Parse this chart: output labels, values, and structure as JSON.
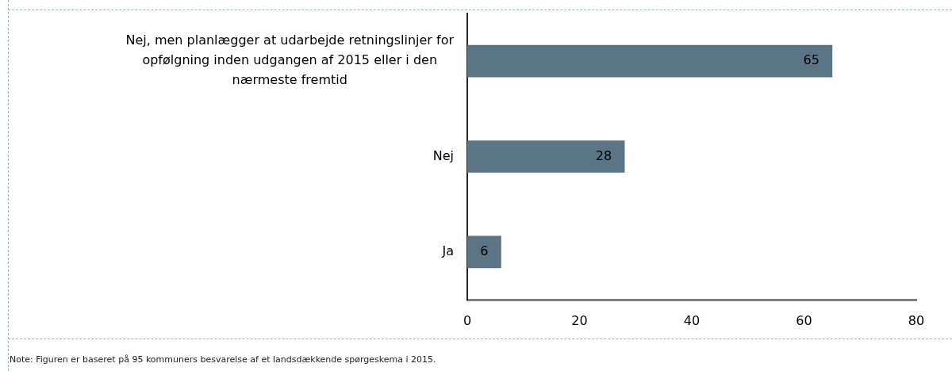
{
  "chart_data": {
    "type": "bar",
    "orientation": "horizontal",
    "categories": [
      "Nej, men planlægger at udarbejde retningslinjer for opfølgning inden udgangen af 2015 eller i den nærmeste fremtid",
      "Nej",
      "Ja"
    ],
    "values": [
      65,
      28,
      6
    ],
    "color": "#5b7586",
    "xlim": [
      0,
      80
    ],
    "xticks": [
      0,
      20,
      40,
      60,
      80
    ],
    "data_labels": true,
    "annotations": [
      "Note: Figuren er baseret på 95 kommuners besvarelse af et landsdækkende spørgeskema i 2015."
    ]
  }
}
